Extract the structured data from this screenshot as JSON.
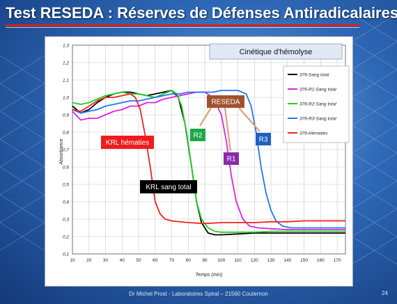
{
  "slide": {
    "title": "Test RESEDA : Réserves de Défenses Antiradicalaires",
    "footer": "Dr Michel Prost - Laboratoires Spiral – 21560 Couternon",
    "page_number": "24",
    "colors": {
      "title_rule": "#d42020",
      "background": "#2e68b6"
    }
  },
  "chart_data": {
    "type": "line",
    "title": "Cinétique d'hémolyse",
    "xlabel": "Temps (min)",
    "ylabel": "Absorbance",
    "xlim": [
      10,
      175
    ],
    "ylim": [
      0.1,
      1.3
    ],
    "xticks": [
      "10",
      "20",
      "30",
      "40",
      "50",
      "60",
      "70",
      "80",
      "90",
      "100",
      "110",
      "120",
      "130",
      "140",
      "150",
      "160",
      "170"
    ],
    "yticks": [
      "0,1",
      "0,2",
      "0,3",
      "0,4",
      "0,5",
      "0,6",
      "0,7",
      "0,8",
      "0,9",
      "1,0",
      "1,1",
      "1,2",
      "1,3"
    ],
    "grid": true,
    "legend_position": "top-right",
    "series": [
      {
        "name": "376-Sang total",
        "color": "#000000",
        "x": [
          10,
          15,
          20,
          25,
          30,
          35,
          40,
          45,
          50,
          55,
          60,
          65,
          70,
          74,
          78,
          82,
          85,
          88,
          92,
          96,
          100,
          110,
          120,
          130,
          140,
          150,
          160,
          170,
          175
        ],
        "y": [
          0.95,
          0.91,
          0.93,
          0.97,
          1.0,
          1.02,
          1.03,
          1.03,
          1.02,
          1.01,
          1.02,
          1.03,
          1.04,
          1.0,
          0.85,
          0.6,
          0.4,
          0.28,
          0.22,
          0.21,
          0.21,
          0.215,
          0.22,
          0.22,
          0.22,
          0.22,
          0.22,
          0.22,
          0.22
        ]
      },
      {
        "name": "376-R1-Sang total",
        "color": "#e020e0",
        "x": [
          10,
          15,
          20,
          25,
          30,
          35,
          40,
          45,
          50,
          55,
          60,
          65,
          70,
          75,
          80,
          85,
          90,
          95,
          100,
          103,
          106,
          109,
          113,
          117,
          122,
          130,
          140,
          150,
          160,
          170,
          175
        ],
        "y": [
          0.92,
          0.87,
          0.88,
          0.88,
          0.9,
          0.92,
          0.93,
          0.95,
          0.95,
          0.97,
          0.97,
          0.99,
          1.0,
          1.01,
          1.02,
          1.03,
          1.03,
          1.0,
          0.9,
          0.75,
          0.55,
          0.4,
          0.3,
          0.26,
          0.25,
          0.245,
          0.24,
          0.24,
          0.24,
          0.24,
          0.24
        ]
      },
      {
        "name": "376-R2-Sang total",
        "color": "#22cc22",
        "x": [
          10,
          15,
          20,
          25,
          30,
          35,
          40,
          45,
          50,
          55,
          60,
          65,
          70,
          73,
          76,
          79,
          82,
          85,
          88,
          92,
          96,
          100,
          110,
          120,
          130,
          140,
          150,
          160,
          170,
          175
        ],
        "y": [
          0.97,
          0.96,
          0.97,
          0.99,
          1.01,
          1.02,
          1.03,
          1.02,
          1.02,
          1.01,
          1.0,
          1.02,
          1.04,
          1.02,
          0.95,
          0.8,
          0.6,
          0.4,
          0.3,
          0.25,
          0.23,
          0.225,
          0.225,
          0.225,
          0.23,
          0.23,
          0.23,
          0.23,
          0.23,
          0.23
        ]
      },
      {
        "name": "376-R3-Sang total",
        "color": "#2277ee",
        "x": [
          10,
          15,
          20,
          25,
          30,
          35,
          40,
          45,
          50,
          55,
          60,
          65,
          70,
          75,
          80,
          85,
          90,
          95,
          100,
          105,
          110,
          115,
          118,
          121,
          124,
          127,
          130,
          133,
          137,
          142,
          150,
          160,
          170,
          175
        ],
        "y": [
          0.93,
          0.91,
          0.92,
          0.93,
          0.95,
          0.96,
          0.97,
          0.98,
          0.98,
          0.99,
          1.0,
          1.01,
          1.02,
          1.02,
          1.03,
          1.03,
          1.03,
          1.03,
          1.04,
          1.04,
          1.04,
          1.02,
          0.95,
          0.8,
          0.6,
          0.45,
          0.35,
          0.29,
          0.26,
          0.25,
          0.25,
          0.25,
          0.25,
          0.25
        ]
      },
      {
        "name": "376-Hématies",
        "color": "#ee2222",
        "x": [
          10,
          15,
          20,
          25,
          30,
          35,
          40,
          45,
          48,
          51,
          54,
          57,
          60,
          63,
          66,
          70,
          80,
          90,
          100,
          110,
          120,
          130,
          140,
          150,
          160,
          170,
          175
        ],
        "y": [
          0.93,
          0.92,
          0.95,
          0.98,
          1.0,
          1.0,
          1.01,
          1.02,
          1.0,
          0.93,
          0.78,
          0.6,
          0.4,
          0.33,
          0.3,
          0.29,
          0.28,
          0.275,
          0.28,
          0.28,
          0.28,
          0.285,
          0.285,
          0.29,
          0.29,
          0.29,
          0.29
        ]
      }
    ],
    "annotations": [
      {
        "text": "KRL hématies",
        "bg": "#ee1c1c",
        "fg": "#ffffff"
      },
      {
        "text": "KRL sang total",
        "bg": "#000000",
        "fg": "#ffffff"
      },
      {
        "text": "R2",
        "bg": "#1ca84a",
        "fg": "#ffffff"
      },
      {
        "text": "RESEDA",
        "bg": "#a0522d",
        "fg": "#ffffff"
      },
      {
        "text": "R1",
        "bg": "#8a2aa8",
        "fg": "#ffffff"
      },
      {
        "text": "R3",
        "bg": "#1f5fbf",
        "fg": "#ffffff"
      }
    ]
  }
}
